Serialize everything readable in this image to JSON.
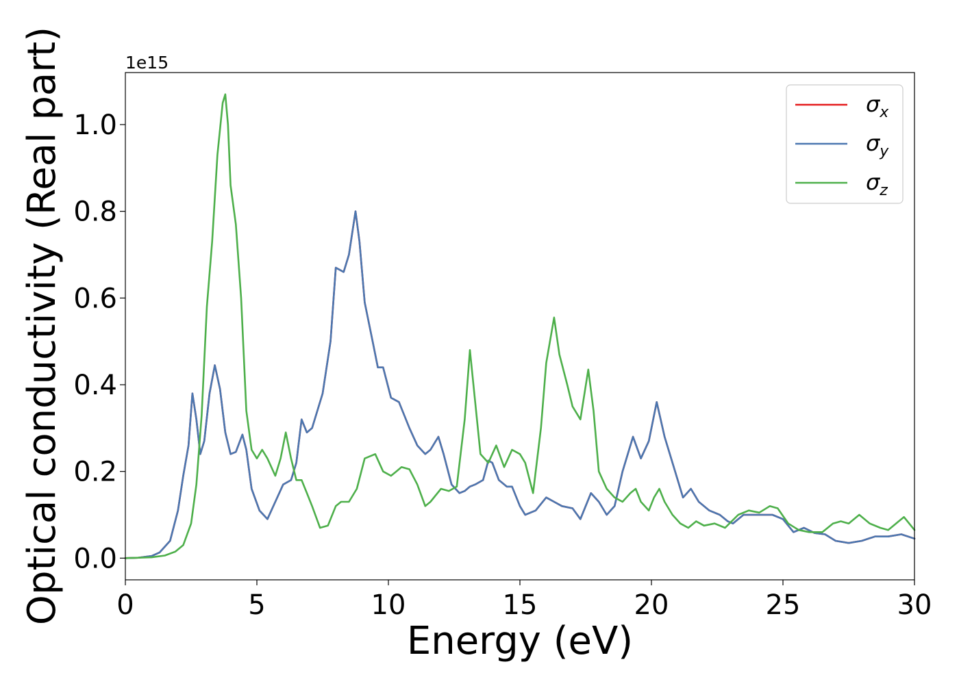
{
  "chart_data": {
    "type": "line",
    "title": "",
    "xlabel": "Energy (eV)",
    "ylabel": "Optical conductivity (Real part)",
    "y_offset_label": "1e15",
    "xlim": [
      0,
      30
    ],
    "ylim": [
      -0.05,
      1.12
    ],
    "xticks": [
      0,
      5,
      10,
      15,
      20,
      25,
      30
    ],
    "xtick_labels": [
      "0",
      "5",
      "10",
      "15",
      "20",
      "25",
      "30"
    ],
    "yticks": [
      0.0,
      0.2,
      0.4,
      0.6,
      0.8,
      1.0
    ],
    "ytick_labels": [
      "0.0",
      "0.2",
      "0.4",
      "0.6",
      "0.8",
      "1.0"
    ],
    "grid": false,
    "legend_position": "top-right",
    "series": [
      {
        "name": "σx",
        "legend_base": "σ",
        "legend_sub": "x",
        "color": "#e41a1c",
        "points": [
          [
            0,
            0
          ],
          [
            0.5,
            0.001
          ],
          [
            1,
            0.005
          ],
          [
            1.3,
            0.013
          ],
          [
            1.7,
            0.04
          ],
          [
            2.0,
            0.11
          ],
          [
            2.2,
            0.19
          ],
          [
            2.4,
            0.26
          ],
          [
            2.55,
            0.38
          ],
          [
            2.7,
            0.32
          ],
          [
            2.85,
            0.24
          ],
          [
            3.0,
            0.27
          ],
          [
            3.2,
            0.38
          ],
          [
            3.4,
            0.445
          ],
          [
            3.6,
            0.39
          ],
          [
            3.8,
            0.29
          ],
          [
            4.0,
            0.24
          ],
          [
            4.2,
            0.245
          ],
          [
            4.45,
            0.285
          ],
          [
            4.6,
            0.25
          ],
          [
            4.8,
            0.16
          ],
          [
            5.1,
            0.11
          ],
          [
            5.4,
            0.09
          ],
          [
            5.7,
            0.13
          ],
          [
            6.0,
            0.17
          ],
          [
            6.3,
            0.18
          ],
          [
            6.5,
            0.22
          ],
          [
            6.7,
            0.32
          ],
          [
            6.9,
            0.29
          ],
          [
            7.1,
            0.3
          ],
          [
            7.5,
            0.38
          ],
          [
            7.8,
            0.5
          ],
          [
            8.0,
            0.67
          ],
          [
            8.3,
            0.66
          ],
          [
            8.5,
            0.7
          ],
          [
            8.75,
            0.8
          ],
          [
            8.9,
            0.73
          ],
          [
            9.1,
            0.59
          ],
          [
            9.4,
            0.5
          ],
          [
            9.6,
            0.44
          ],
          [
            9.8,
            0.44
          ],
          [
            10.1,
            0.37
          ],
          [
            10.4,
            0.36
          ],
          [
            10.8,
            0.3
          ],
          [
            11.1,
            0.26
          ],
          [
            11.4,
            0.24
          ],
          [
            11.6,
            0.25
          ],
          [
            11.9,
            0.28
          ],
          [
            12.1,
            0.24
          ],
          [
            12.4,
            0.17
          ],
          [
            12.7,
            0.15
          ],
          [
            12.9,
            0.155
          ],
          [
            13.1,
            0.165
          ],
          [
            13.3,
            0.17
          ],
          [
            13.6,
            0.18
          ],
          [
            13.8,
            0.225
          ],
          [
            13.95,
            0.22
          ],
          [
            14.2,
            0.18
          ],
          [
            14.5,
            0.165
          ],
          [
            14.7,
            0.165
          ],
          [
            15.0,
            0.12
          ],
          [
            15.2,
            0.1
          ],
          [
            15.6,
            0.11
          ],
          [
            16.0,
            0.14
          ],
          [
            16.3,
            0.13
          ],
          [
            16.6,
            0.12
          ],
          [
            17.0,
            0.115
          ],
          [
            17.3,
            0.09
          ],
          [
            17.7,
            0.15
          ],
          [
            18.0,
            0.13
          ],
          [
            18.3,
            0.1
          ],
          [
            18.6,
            0.12
          ],
          [
            18.9,
            0.2
          ],
          [
            19.3,
            0.28
          ],
          [
            19.6,
            0.23
          ],
          [
            19.9,
            0.27
          ],
          [
            20.2,
            0.36
          ],
          [
            20.5,
            0.28
          ],
          [
            20.9,
            0.2
          ],
          [
            21.2,
            0.14
          ],
          [
            21.5,
            0.16
          ],
          [
            21.8,
            0.13
          ],
          [
            22.2,
            0.11
          ],
          [
            22.6,
            0.1
          ],
          [
            22.9,
            0.085
          ],
          [
            23.1,
            0.08
          ],
          [
            23.5,
            0.1
          ],
          [
            24.0,
            0.1
          ],
          [
            24.6,
            0.1
          ],
          [
            25.0,
            0.09
          ],
          [
            25.4,
            0.06
          ],
          [
            25.8,
            0.07
          ],
          [
            26.2,
            0.058
          ],
          [
            26.6,
            0.055
          ],
          [
            27.0,
            0.04
          ],
          [
            27.5,
            0.035
          ],
          [
            28.0,
            0.04
          ],
          [
            28.5,
            0.05
          ],
          [
            29.0,
            0.05
          ],
          [
            29.5,
            0.055
          ],
          [
            30.0,
            0.045
          ]
        ]
      },
      {
        "name": "σy",
        "legend_base": "σ",
        "legend_sub": "y",
        "color": "#4a77b0",
        "points": [
          [
            0,
            0
          ],
          [
            0.5,
            0.001
          ],
          [
            1,
            0.005
          ],
          [
            1.3,
            0.013
          ],
          [
            1.7,
            0.04
          ],
          [
            2.0,
            0.11
          ],
          [
            2.2,
            0.19
          ],
          [
            2.4,
            0.26
          ],
          [
            2.55,
            0.38
          ],
          [
            2.7,
            0.32
          ],
          [
            2.85,
            0.24
          ],
          [
            3.0,
            0.27
          ],
          [
            3.2,
            0.38
          ],
          [
            3.4,
            0.445
          ],
          [
            3.6,
            0.39
          ],
          [
            3.8,
            0.29
          ],
          [
            4.0,
            0.24
          ],
          [
            4.2,
            0.245
          ],
          [
            4.45,
            0.285
          ],
          [
            4.6,
            0.25
          ],
          [
            4.8,
            0.16
          ],
          [
            5.1,
            0.11
          ],
          [
            5.4,
            0.09
          ],
          [
            5.7,
            0.13
          ],
          [
            6.0,
            0.17
          ],
          [
            6.3,
            0.18
          ],
          [
            6.5,
            0.22
          ],
          [
            6.7,
            0.32
          ],
          [
            6.9,
            0.29
          ],
          [
            7.1,
            0.3
          ],
          [
            7.5,
            0.38
          ],
          [
            7.8,
            0.5
          ],
          [
            8.0,
            0.67
          ],
          [
            8.3,
            0.66
          ],
          [
            8.5,
            0.7
          ],
          [
            8.75,
            0.8
          ],
          [
            8.9,
            0.73
          ],
          [
            9.1,
            0.59
          ],
          [
            9.4,
            0.5
          ],
          [
            9.6,
            0.44
          ],
          [
            9.8,
            0.44
          ],
          [
            10.1,
            0.37
          ],
          [
            10.4,
            0.36
          ],
          [
            10.8,
            0.3
          ],
          [
            11.1,
            0.26
          ],
          [
            11.4,
            0.24
          ],
          [
            11.6,
            0.25
          ],
          [
            11.9,
            0.28
          ],
          [
            12.1,
            0.24
          ],
          [
            12.4,
            0.17
          ],
          [
            12.7,
            0.15
          ],
          [
            12.9,
            0.155
          ],
          [
            13.1,
            0.165
          ],
          [
            13.3,
            0.17
          ],
          [
            13.6,
            0.18
          ],
          [
            13.8,
            0.225
          ],
          [
            13.95,
            0.22
          ],
          [
            14.2,
            0.18
          ],
          [
            14.5,
            0.165
          ],
          [
            14.7,
            0.165
          ],
          [
            15.0,
            0.12
          ],
          [
            15.2,
            0.1
          ],
          [
            15.6,
            0.11
          ],
          [
            16.0,
            0.14
          ],
          [
            16.3,
            0.13
          ],
          [
            16.6,
            0.12
          ],
          [
            17.0,
            0.115
          ],
          [
            17.3,
            0.09
          ],
          [
            17.7,
            0.15
          ],
          [
            18.0,
            0.13
          ],
          [
            18.3,
            0.1
          ],
          [
            18.6,
            0.12
          ],
          [
            18.9,
            0.2
          ],
          [
            19.3,
            0.28
          ],
          [
            19.6,
            0.23
          ],
          [
            19.9,
            0.27
          ],
          [
            20.2,
            0.36
          ],
          [
            20.5,
            0.28
          ],
          [
            20.9,
            0.2
          ],
          [
            21.2,
            0.14
          ],
          [
            21.5,
            0.16
          ],
          [
            21.8,
            0.13
          ],
          [
            22.2,
            0.11
          ],
          [
            22.6,
            0.1
          ],
          [
            22.9,
            0.085
          ],
          [
            23.1,
            0.08
          ],
          [
            23.5,
            0.1
          ],
          [
            24.0,
            0.1
          ],
          [
            24.6,
            0.1
          ],
          [
            25.0,
            0.09
          ],
          [
            25.4,
            0.06
          ],
          [
            25.8,
            0.07
          ],
          [
            26.2,
            0.058
          ],
          [
            26.6,
            0.055
          ],
          [
            27.0,
            0.04
          ],
          [
            27.5,
            0.035
          ],
          [
            28.0,
            0.04
          ],
          [
            28.5,
            0.05
          ],
          [
            29.0,
            0.05
          ],
          [
            29.5,
            0.055
          ],
          [
            30.0,
            0.045
          ]
        ]
      },
      {
        "name": "σz",
        "legend_base": "σ",
        "legend_sub": "z",
        "color": "#4daf4a",
        "points": [
          [
            0,
            0
          ],
          [
            0.5,
            0.001
          ],
          [
            1,
            0.002
          ],
          [
            1.5,
            0.006
          ],
          [
            1.9,
            0.015
          ],
          [
            2.2,
            0.03
          ],
          [
            2.5,
            0.08
          ],
          [
            2.7,
            0.17
          ],
          [
            2.9,
            0.33
          ],
          [
            3.1,
            0.58
          ],
          [
            3.3,
            0.73
          ],
          [
            3.5,
            0.93
          ],
          [
            3.7,
            1.05
          ],
          [
            3.8,
            1.07
          ],
          [
            3.9,
            1.0
          ],
          [
            4.0,
            0.86
          ],
          [
            4.2,
            0.77
          ],
          [
            4.4,
            0.6
          ],
          [
            4.6,
            0.34
          ],
          [
            4.8,
            0.25
          ],
          [
            5.0,
            0.23
          ],
          [
            5.2,
            0.25
          ],
          [
            5.4,
            0.23
          ],
          [
            5.7,
            0.19
          ],
          [
            5.9,
            0.23
          ],
          [
            6.1,
            0.29
          ],
          [
            6.3,
            0.23
          ],
          [
            6.5,
            0.18
          ],
          [
            6.7,
            0.18
          ],
          [
            6.9,
            0.15
          ],
          [
            7.1,
            0.12
          ],
          [
            7.4,
            0.07
          ],
          [
            7.7,
            0.075
          ],
          [
            8.0,
            0.12
          ],
          [
            8.2,
            0.13
          ],
          [
            8.5,
            0.13
          ],
          [
            8.8,
            0.16
          ],
          [
            9.1,
            0.23
          ],
          [
            9.5,
            0.24
          ],
          [
            9.8,
            0.2
          ],
          [
            10.1,
            0.19
          ],
          [
            10.3,
            0.2
          ],
          [
            10.5,
            0.21
          ],
          [
            10.8,
            0.205
          ],
          [
            11.1,
            0.17
          ],
          [
            11.4,
            0.12
          ],
          [
            11.6,
            0.13
          ],
          [
            12.0,
            0.16
          ],
          [
            12.3,
            0.155
          ],
          [
            12.6,
            0.165
          ],
          [
            12.9,
            0.32
          ],
          [
            13.1,
            0.48
          ],
          [
            13.3,
            0.36
          ],
          [
            13.5,
            0.24
          ],
          [
            13.8,
            0.22
          ],
          [
            14.1,
            0.26
          ],
          [
            14.4,
            0.21
          ],
          [
            14.7,
            0.25
          ],
          [
            15.0,
            0.24
          ],
          [
            15.2,
            0.22
          ],
          [
            15.5,
            0.15
          ],
          [
            15.8,
            0.3
          ],
          [
            16.0,
            0.45
          ],
          [
            16.3,
            0.555
          ],
          [
            16.5,
            0.47
          ],
          [
            16.8,
            0.4
          ],
          [
            17.0,
            0.35
          ],
          [
            17.3,
            0.32
          ],
          [
            17.6,
            0.435
          ],
          [
            17.8,
            0.34
          ],
          [
            18.0,
            0.2
          ],
          [
            18.3,
            0.16
          ],
          [
            18.6,
            0.14
          ],
          [
            18.9,
            0.13
          ],
          [
            19.2,
            0.15
          ],
          [
            19.4,
            0.16
          ],
          [
            19.6,
            0.13
          ],
          [
            19.9,
            0.11
          ],
          [
            20.1,
            0.14
          ],
          [
            20.3,
            0.16
          ],
          [
            20.5,
            0.13
          ],
          [
            20.8,
            0.1
          ],
          [
            21.1,
            0.08
          ],
          [
            21.4,
            0.07
          ],
          [
            21.7,
            0.085
          ],
          [
            22.0,
            0.075
          ],
          [
            22.4,
            0.08
          ],
          [
            22.8,
            0.07
          ],
          [
            23.3,
            0.1
          ],
          [
            23.7,
            0.11
          ],
          [
            24.1,
            0.105
          ],
          [
            24.5,
            0.12
          ],
          [
            24.8,
            0.115
          ],
          [
            25.2,
            0.08
          ],
          [
            25.6,
            0.065
          ],
          [
            26.0,
            0.06
          ],
          [
            26.5,
            0.06
          ],
          [
            26.9,
            0.08
          ],
          [
            27.2,
            0.085
          ],
          [
            27.5,
            0.08
          ],
          [
            27.9,
            0.1
          ],
          [
            28.3,
            0.08
          ],
          [
            28.7,
            0.07
          ],
          [
            29.0,
            0.065
          ],
          [
            29.3,
            0.08
          ],
          [
            29.6,
            0.095
          ],
          [
            30.0,
            0.065
          ]
        ]
      }
    ]
  }
}
